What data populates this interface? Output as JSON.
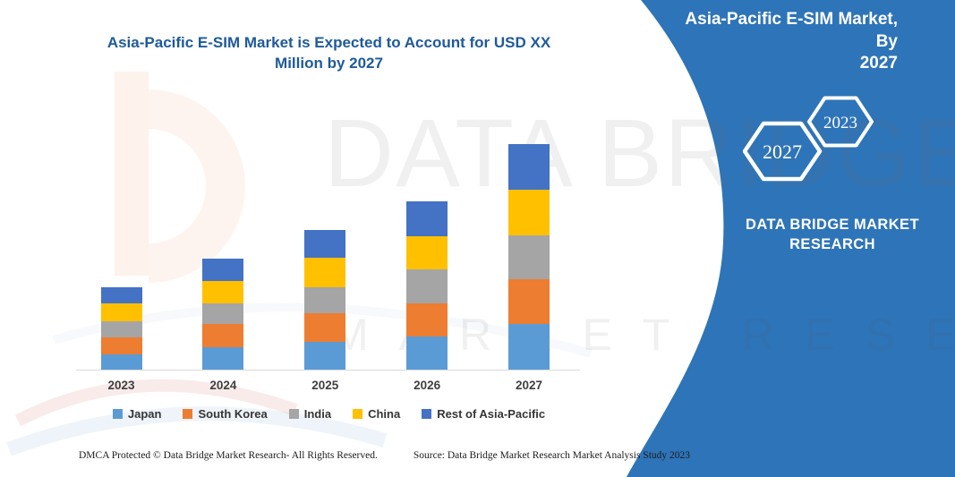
{
  "chart": {
    "title": "Asia-Pacific E-SIM Market is Expected to Account for USD XX Million by 2027",
    "title_color": "#1e5a9a"
  },
  "chart_data": {
    "type": "bar",
    "stacked": true,
    "title": "Asia-Pacific E-SIM Market is Expected to Account for USD XX Million by 2027",
    "categories": [
      "2023",
      "2024",
      "2025",
      "2026",
      "2027"
    ],
    "series": [
      {
        "name": "Japan",
        "color": "#5B9BD5",
        "values": [
          18,
          26,
          32,
          38,
          52
        ]
      },
      {
        "name": "South Korea",
        "color": "#ED7D31",
        "values": [
          19,
          26,
          32,
          37,
          50
        ]
      },
      {
        "name": "India",
        "color": "#A5A5A5",
        "values": [
          18,
          23,
          29,
          38,
          49
        ]
      },
      {
        "name": "China",
        "color": "#FFC000",
        "values": [
          20,
          25,
          33,
          37,
          51
        ]
      },
      {
        "name": "Rest of Asia-Pacific",
        "color": "#4472C4",
        "values": [
          18,
          25,
          31,
          39,
          51
        ]
      }
    ],
    "totals": [
      93,
      125,
      157,
      189,
      253
    ],
    "units": "relative units (actual values shown as USD XX Million — no value axis labels in image)",
    "xlabel": "",
    "ylabel": "",
    "ylim": [
      0,
      270
    ],
    "value_axis_visible": false,
    "grid": false,
    "legend_position": "bottom"
  },
  "side_panel": {
    "background": "#2E74B8",
    "title_line1": "Asia-Pacific E-SIM Market, By",
    "title_line2": "2027",
    "hexagons": [
      "2027",
      "2023"
    ],
    "brand_line1": "DATA BRIDGE MARKET",
    "brand_line2": "RESEARCH"
  },
  "watermark": {
    "text_primary": "DATA BRIDGE",
    "text_secondary": "MARKET RESEARCH",
    "logo": "data-bridge-b-logo"
  },
  "footer": {
    "left": "DMCA Protected © Data Bridge Market Research-  All Rights Reserved.",
    "source": "Source: Data Bridge Market Research  Market Analysis Study 2023"
  }
}
